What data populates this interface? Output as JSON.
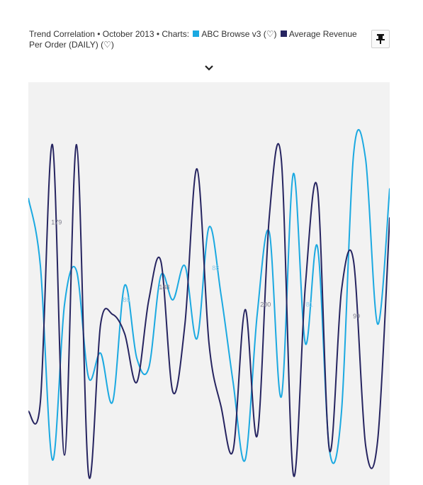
{
  "header": {
    "prefix": "Trend Correlation • October 2013 • Charts:",
    "series1_label": "ABC Browse v3 (♡)",
    "series2_label": "Average Revenue Per Order (DAILY) (♡)"
  },
  "icons": {
    "pin": "pushpin-icon",
    "expand": "chevron-down-icon"
  },
  "colors": {
    "series1": "#1ba9e1",
    "series2": "#262460",
    "background": "#f2f2f2"
  },
  "chart_data": {
    "type": "line",
    "x": [
      1,
      2,
      3,
      4,
      5,
      6,
      7,
      8,
      9,
      10,
      11,
      12,
      13,
      14,
      15,
      16,
      17,
      18,
      19,
      20,
      21,
      22,
      23,
      24,
      25,
      26,
      27,
      28,
      29,
      30,
      31
    ],
    "series": [
      {
        "name": "ABC Browse v3 (♡)",
        "values": [
          290,
          220,
          20,
          180,
          215,
          105,
          130,
          80,
          200,
          125,
          115,
          210,
          185,
          220,
          145,
          260,
          190,
          100,
          20,
          170,
          255,
          85,
          315,
          140,
          240,
          30,
          70,
          335,
          330,
          160,
          300
        ]
      },
      {
        "name": "Average Revenue Per Order (DAILY) (♡)",
        "values": [
          70,
          80,
          345,
          25,
          345,
          5,
          160,
          170,
          150,
          100,
          185,
          225,
          90,
          160,
          320,
          140,
          75,
          30,
          175,
          45,
          270,
          330,
          5,
          200,
          300,
          30,
          195,
          225,
          35,
          40,
          270
        ]
      }
    ],
    "data_labels": [
      {
        "series": 1,
        "x": 3.25,
        "value": 179,
        "text": "179"
      },
      {
        "series": 0,
        "x": 9.2,
        "value": 86,
        "text": "86"
      },
      {
        "series": 1,
        "x": 12.2,
        "value": 188,
        "text": "188"
      },
      {
        "series": 0,
        "x": 16.6,
        "value": 88,
        "text": "88"
      },
      {
        "series": 1,
        "x": 20.6,
        "value": 200,
        "text": "200"
      },
      {
        "series": 0,
        "x": 24.4,
        "value": 81,
        "text": "81"
      },
      {
        "series": 1,
        "x": 28.3,
        "value": 99,
        "text": "99"
      }
    ],
    "grid": false,
    "legend_position": "header"
  }
}
